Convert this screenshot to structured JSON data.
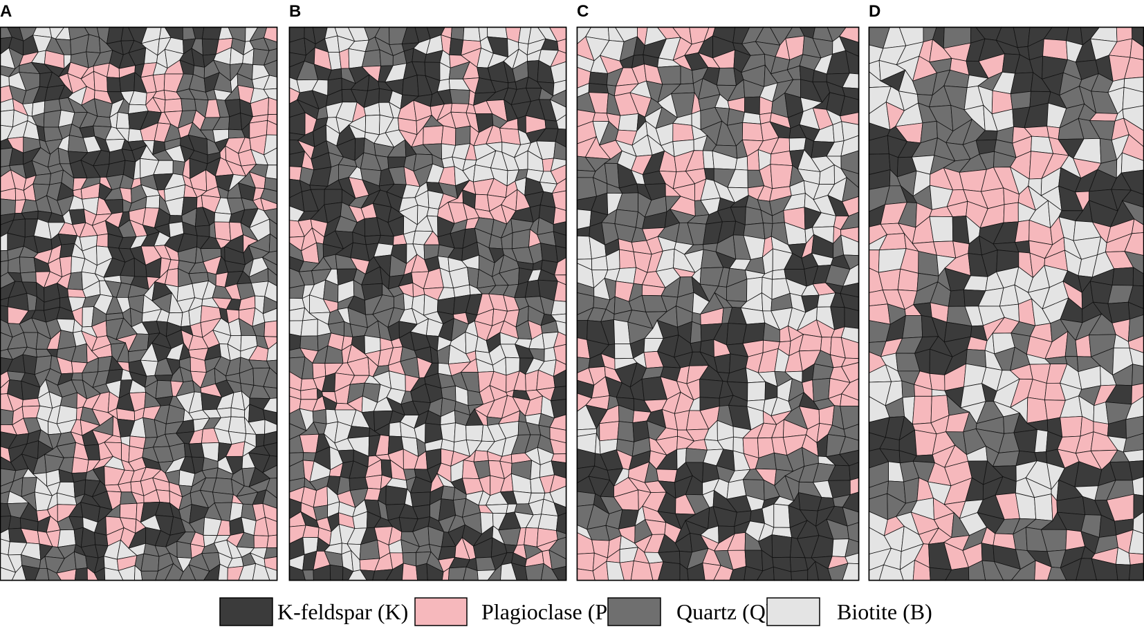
{
  "panels": [
    {
      "label": "A"
    },
    {
      "label": "B"
    },
    {
      "label": "C"
    },
    {
      "label": "D"
    }
  ],
  "legend": [
    {
      "label": "K-feldspar (K)",
      "color": "#3b3b3b"
    },
    {
      "label": "Plagioclase (P)",
      "color": "#f6b8bc"
    },
    {
      "label": "Quartz (Q)",
      "color": "#6f6f6f"
    },
    {
      "label": "Biotite (B)",
      "color": "#e4e4e4"
    }
  ]
}
